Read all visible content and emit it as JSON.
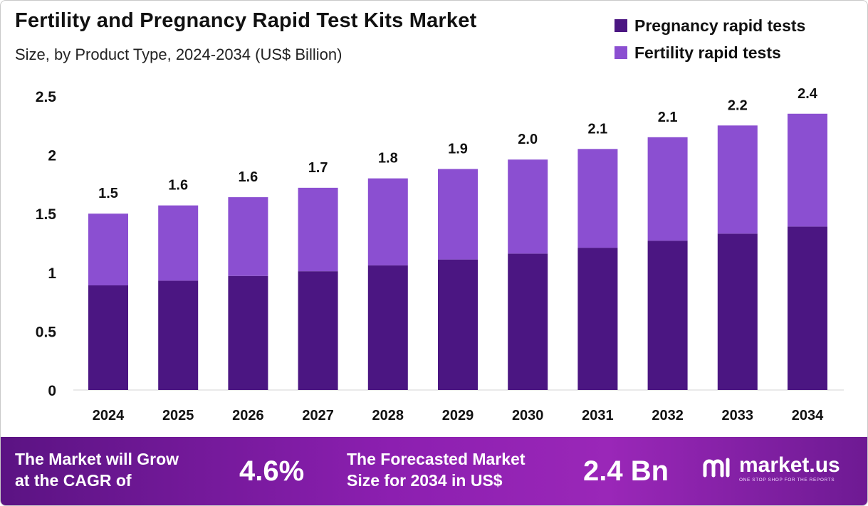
{
  "header": {
    "title": "Fertility and Pregnancy Rapid Test Kits Market",
    "subtitle": "Size, by Product Type, 2024-2034 (US$ Billion)"
  },
  "legend": [
    {
      "label": "Pregnancy rapid tests",
      "color": "#4b1682"
    },
    {
      "label": "Fertility rapid tests",
      "color": "#8b4fd1"
    }
  ],
  "chart_data": {
    "type": "bar",
    "stacked": true,
    "categories": [
      "2024",
      "2025",
      "2026",
      "2027",
      "2028",
      "2029",
      "2030",
      "2031",
      "2032",
      "2033",
      "2034"
    ],
    "series": [
      {
        "name": "Pregnancy rapid tests",
        "color": "#4b1682",
        "values": [
          0.89,
          0.93,
          0.97,
          1.01,
          1.06,
          1.11,
          1.16,
          1.21,
          1.27,
          1.33,
          1.39
        ]
      },
      {
        "name": "Fertility rapid tests",
        "color": "#8b4fd1",
        "values": [
          0.61,
          0.64,
          0.67,
          0.71,
          0.74,
          0.77,
          0.8,
          0.84,
          0.88,
          0.92,
          0.96
        ]
      }
    ],
    "totals_labels": [
      "1.5",
      "1.6",
      "1.6",
      "1.7",
      "1.8",
      "1.9",
      "2.0",
      "2.1",
      "2.1",
      "2.2",
      "2.4"
    ],
    "y_ticks": [
      0,
      0.5,
      1,
      1.5,
      2,
      2.5
    ],
    "y_tick_labels": [
      "0",
      "0.5",
      "1",
      "1.5",
      "2",
      "2.5"
    ],
    "ylim": [
      0,
      2.5
    ],
    "grid": false,
    "legend_position": "top-right"
  },
  "footer": {
    "cagr_text_line1": "The Market will Grow",
    "cagr_text_line2": "at the CAGR of",
    "cagr_value": "4.6%",
    "forecast_text_line1": "The Forecasted Market",
    "forecast_text_line2": "Size for 2034 in US$",
    "forecast_value": "2.4 Bn",
    "brand_name": "market.us",
    "brand_tagline": "ONE STOP SHOP FOR THE REPORTS"
  }
}
